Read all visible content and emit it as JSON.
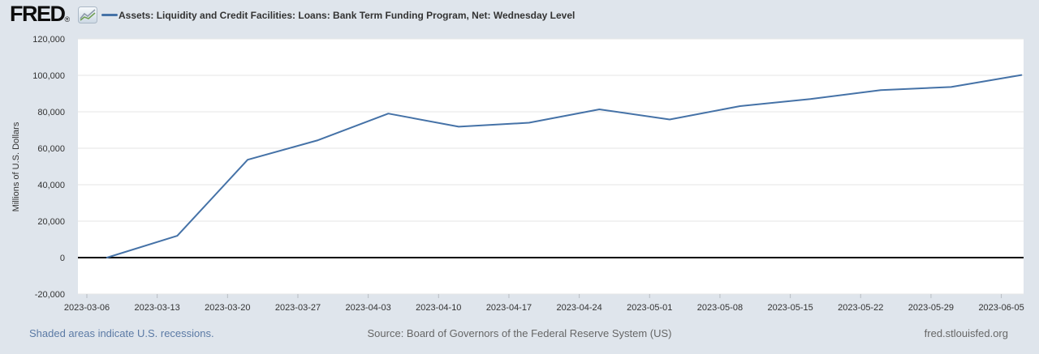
{
  "header": {
    "logo": "FRED",
    "registered_mark": "®",
    "series_title": "Assets: Liquidity and Credit Facilities: Loans: Bank Term Funding Program, Net: Wednesday Level"
  },
  "chart_data": {
    "type": "line",
    "title": "Assets: Liquidity and Credit Facilities: Loans: Bank Term Funding Program, Net: Wednesday Level",
    "xlabel": "",
    "ylabel": "Millions of U.S. Dollars",
    "ylim": [
      -20000,
      120000
    ],
    "grid": true,
    "legend_position": "top-left",
    "line_color": "#4572a7",
    "x_tick_labels": [
      "2023-03-06",
      "2023-03-13",
      "2023-03-20",
      "2023-03-27",
      "2023-04-03",
      "2023-04-10",
      "2023-04-17",
      "2023-04-24",
      "2023-05-01",
      "2023-05-08",
      "2023-05-15",
      "2023-05-22",
      "2023-05-29",
      "2023-06-05"
    ],
    "y_ticks": [
      {
        "value": 120000,
        "label": "120,000"
      },
      {
        "value": 100000,
        "label": "100,000"
      },
      {
        "value": 80000,
        "label": "80,000"
      },
      {
        "value": 60000,
        "label": "60,000"
      },
      {
        "value": 40000,
        "label": "40,000"
      },
      {
        "value": 20000,
        "label": "20,000"
      },
      {
        "value": 0,
        "label": "0"
      },
      {
        "value": -20000,
        "label": "-20,000"
      }
    ],
    "series": [
      {
        "name": "Assets: Liquidity and Credit Facilities: Loans: Bank Term Funding Program, Net: Wednesday Level",
        "x": [
          "2023-03-08",
          "2023-03-15",
          "2023-03-22",
          "2023-03-29",
          "2023-04-05",
          "2023-04-12",
          "2023-04-19",
          "2023-04-26",
          "2023-05-03",
          "2023-05-10",
          "2023-05-17",
          "2023-05-24",
          "2023-05-31",
          "2023-06-07"
        ],
        "values": [
          0,
          11943,
          53669,
          64403,
          79021,
          71837,
          73982,
          81327,
          75778,
          83101,
          87006,
          91907,
          93615,
          100161
        ]
      }
    ]
  },
  "footer": {
    "recessions_note": "Shaded areas indicate U.S. recessions.",
    "source": "Source: Board of Governors of the Federal Reserve System (US)",
    "site": "fred.stlouisfed.org"
  },
  "colors": {
    "background": "#dfe5ec",
    "plot_background": "#ffffff",
    "line": "#4572a7",
    "grid": "#e6e6e6",
    "zero_line": "#000000",
    "axis_tick": "#b7bcc2",
    "tick_text": "#333333",
    "link": "#5b7aa5",
    "muted_text": "#666666"
  }
}
